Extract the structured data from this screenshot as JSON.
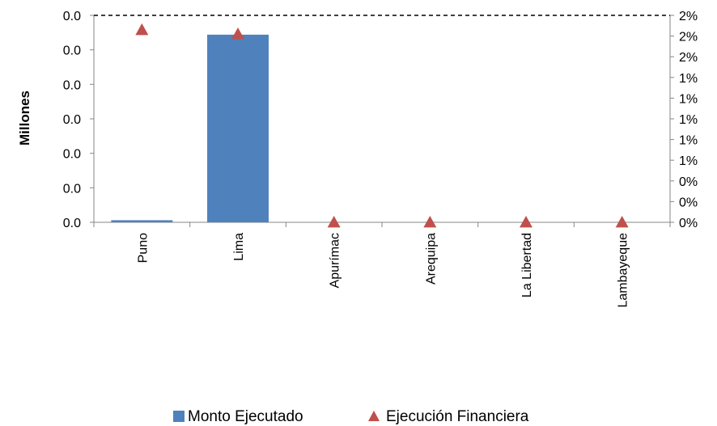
{
  "chart_data": {
    "type": "bar",
    "title": "",
    "xlabel": "",
    "ylabel": "Millones",
    "categories": [
      "Puno",
      "Lima",
      "Apurímac",
      "Arequipa",
      "La Libertad",
      "Lambayeque"
    ],
    "left_axis": {
      "tick_labels": [
        "0.0",
        "0.0",
        "0.0",
        "0.0",
        "0.0",
        "0.0",
        "0.0"
      ]
    },
    "right_axis": {
      "tick_labels": [
        "0%",
        "0%",
        "0%",
        "1%",
        "1%",
        "1%",
        "1%",
        "1%",
        "2%",
        "2%",
        "2%"
      ],
      "ylim": [
        0,
        0.02
      ]
    },
    "series": [
      {
        "name": "Monto Ejecutado",
        "type": "bar",
        "axis": "left",
        "color": "#4F81BD",
        "values": [
          0.0003,
          0.0272,
          0.0,
          0.0,
          0.0,
          0.0
        ]
      },
      {
        "name": "Ejecución Financiera",
        "type": "scatter",
        "marker": "triangle",
        "axis": "right",
        "color": "#C0504D",
        "values": [
          0.0186,
          0.0182,
          0.0,
          0.0,
          0.0,
          0.0
        ]
      }
    ],
    "ylim": [
      0,
      0.03
    ],
    "grid": false,
    "reference_line": "dashed line at top of plot",
    "legend_position": "bottom"
  }
}
